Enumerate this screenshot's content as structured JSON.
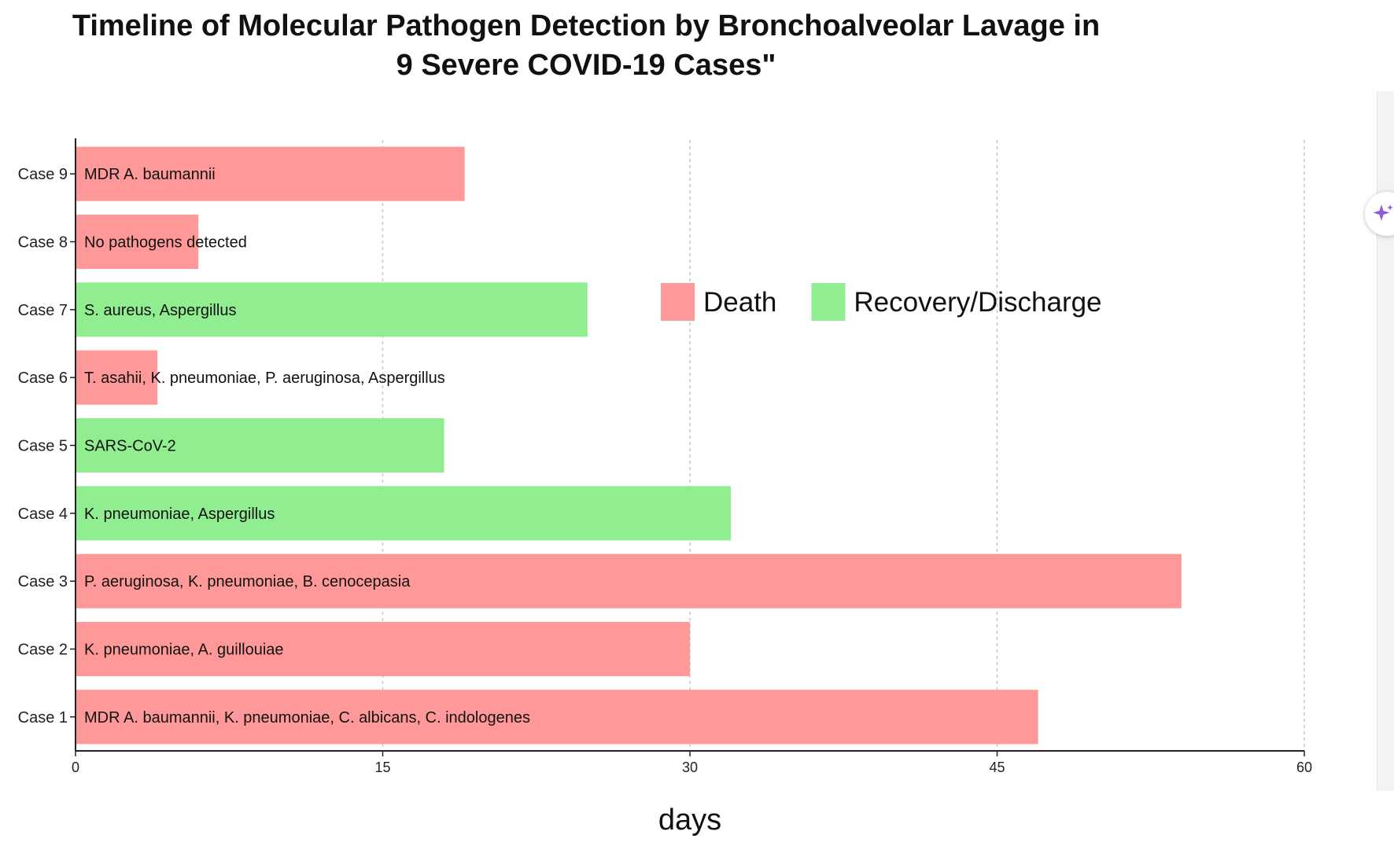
{
  "chart_data": {
    "type": "bar",
    "orientation": "horizontal",
    "title": "Timeline of Molecular Pathogen Detection by Bronchoalveolar Lavage in 9 Severe COVID-19 Cases\"",
    "title_lines": [
      "Timeline of Molecular Pathogen Detection by Bronchoalveolar Lavage in",
      "9 Severe COVID-19 Cases\""
    ],
    "xlabel": "days",
    "ylabel": "",
    "xlim": [
      0,
      60
    ],
    "x_ticks": [
      "0",
      "15",
      "30",
      "45",
      "60"
    ],
    "grid": "vertical dashed",
    "legend_position": "center-right",
    "legend": [
      {
        "name": "Death",
        "color": "#ff9999"
      },
      {
        "name": "Recovery/Discharge",
        "color": "#90ee90"
      }
    ],
    "categories": [
      "Case 1",
      "Case 2",
      "Case 3",
      "Case 4",
      "Case 5",
      "Case 6",
      "Case 7",
      "Case 8",
      "Case 9"
    ],
    "bars": [
      {
        "case": "Case 1",
        "days": 47,
        "outcome": "Death",
        "label": "MDR A. baumannii, K. pneumoniae, C. albicans, C. indologenes"
      },
      {
        "case": "Case 2",
        "days": 30,
        "outcome": "Death",
        "label": "K. pneumoniae, A. guillouiae"
      },
      {
        "case": "Case 3",
        "days": 54,
        "outcome": "Death",
        "label": "P. aeruginosa, K. pneumoniae, B. cenocepasia"
      },
      {
        "case": "Case 4",
        "days": 32,
        "outcome": "Recovery/Discharge",
        "label": "K. pneumoniae, Aspergillus"
      },
      {
        "case": "Case 5",
        "days": 18,
        "outcome": "Recovery/Discharge",
        "label": "SARS-CoV-2"
      },
      {
        "case": "Case 6",
        "days": 4,
        "outcome": "Death",
        "label": "T. asahii, K. pneumoniae, P. aeruginosa, Aspergillus"
      },
      {
        "case": "Case 7",
        "days": 25,
        "outcome": "Recovery/Discharge",
        "label": "S. aureus, Aspergillus"
      },
      {
        "case": "Case 8",
        "days": 6,
        "outcome": "Death",
        "label": "No pathogens detected"
      },
      {
        "case": "Case 9",
        "days": 19,
        "outcome": "Death",
        "label": "MDR A. baumannii"
      }
    ]
  },
  "ui": {
    "assistant_button_icon": "sparkle-icon",
    "accent_color": "#8e5bd0"
  }
}
